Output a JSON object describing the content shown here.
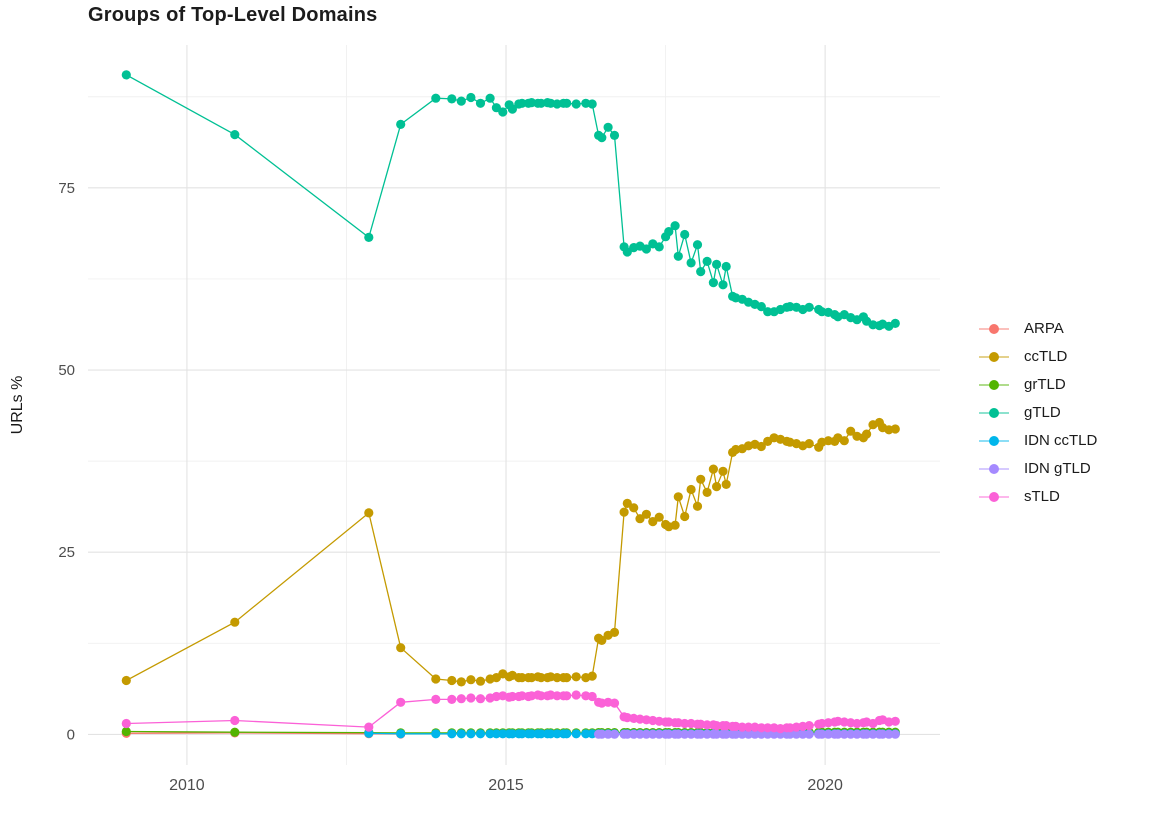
{
  "title": "Groups of Top-Level Domains",
  "axes": {
    "y_label": "URLs %",
    "y_ticks": [
      "0",
      "25",
      "50",
      "75"
    ],
    "y_tick_values": [
      0,
      25,
      50,
      75
    ],
    "x_ticks": [
      "2010",
      "2015",
      "2020"
    ],
    "x_tick_values": [
      2010,
      2015,
      2020
    ]
  },
  "chart_data": {
    "type": "line",
    "title": "Groups of Top-Level Domains",
    "xlabel": "",
    "ylabel": "URLs %",
    "xlim": [
      2008.45,
      2021.8
    ],
    "ylim": [
      -4.2,
      94.6
    ],
    "grid": true,
    "background_color": "#FFFFFF",
    "grid_major_color": "#E3E3E3",
    "grid_minor_color": "#F0F0F0",
    "tick_label_color": "#4D4D4D",
    "text_color": "#1A1A1A",
    "legend_position": "right",
    "x_major_gridlines": [
      2010,
      2015,
      2020
    ],
    "x_minor_gridlines": [
      2012.5,
      2017.5
    ],
    "y_major_gridlines": [
      0,
      25,
      50,
      75
    ],
    "y_minor_gridlines": [
      12.5,
      37.5,
      62.5,
      87.5
    ],
    "series": [
      {
        "name": "ARPA",
        "color": "#F8766D",
        "x": [
          2009.05,
          2010.75,
          2012.85,
          2013.35
        ],
        "y": [
          0.15,
          0.2,
          0.1,
          0.05
        ]
      },
      {
        "name": "ccTLD",
        "color": "#C49A00",
        "x": [
          2009.05,
          2010.75,
          2012.85,
          2013.35,
          2013.9,
          2014.15,
          2014.3,
          2014.45,
          2014.6,
          2014.75,
          2014.85,
          2014.95,
          2015.05,
          2015.1,
          2015.2,
          2015.25,
          2015.35,
          2015.4,
          2015.5,
          2015.55,
          2015.65,
          2015.7,
          2015.8,
          2015.9,
          2015.95,
          2016.1,
          2016.25,
          2016.35,
          2016.45,
          2016.5,
          2016.6,
          2016.7,
          2016.85,
          2016.9,
          2017.0,
          2017.1,
          2017.2,
          2017.3,
          2017.4,
          2017.5,
          2017.55,
          2017.65,
          2017.7,
          2017.8,
          2017.9,
          2018.0,
          2018.05,
          2018.15,
          2018.25,
          2018.3,
          2018.4,
          2018.45,
          2018.55,
          2018.6,
          2018.7,
          2018.8,
          2018.9,
          2019.0,
          2019.1,
          2019.2,
          2019.3,
          2019.4,
          2019.45,
          2019.55,
          2019.65,
          2019.75,
          2019.9,
          2019.95,
          2020.05,
          2020.15,
          2020.2,
          2020.3,
          2020.4,
          2020.5,
          2020.6,
          2020.65,
          2020.75,
          2020.85,
          2020.9,
          2021.0,
          2021.1
        ],
        "y": [
          7.4,
          15.4,
          30.4,
          11.9,
          7.6,
          7.4,
          7.2,
          7.5,
          7.3,
          7.6,
          7.8,
          8.3,
          7.9,
          8.1,
          7.8,
          7.8,
          7.8,
          7.8,
          7.9,
          7.8,
          7.8,
          7.9,
          7.8,
          7.8,
          7.8,
          7.9,
          7.8,
          8.0,
          13.2,
          12.9,
          13.6,
          14.0,
          30.5,
          31.7,
          31.1,
          29.6,
          30.2,
          29.2,
          29.8,
          28.8,
          28.5,
          28.7,
          32.6,
          29.9,
          33.6,
          31.3,
          35.0,
          33.2,
          36.4,
          34.0,
          36.1,
          34.3,
          38.7,
          39.1,
          39.2,
          39.6,
          39.8,
          39.5,
          40.2,
          40.7,
          40.5,
          40.2,
          40.1,
          39.9,
          39.6,
          39.9,
          39.4,
          40.1,
          40.3,
          40.2,
          40.7,
          40.3,
          41.6,
          40.9,
          40.7,
          41.2,
          42.5,
          42.8,
          42.1,
          41.8,
          41.9
        ]
      },
      {
        "name": "grTLD",
        "color": "#53B400",
        "x": [
          2009.05,
          2010.75,
          2012.85,
          2013.35,
          2013.9,
          2014.15,
          2014.3,
          2014.45,
          2014.6,
          2014.75,
          2014.85,
          2014.95,
          2015.05,
          2015.1,
          2015.2,
          2015.25,
          2015.35,
          2015.4,
          2015.5,
          2015.55,
          2015.65,
          2015.7,
          2015.8,
          2015.9,
          2015.95,
          2016.1,
          2016.25,
          2016.35,
          2016.45,
          2016.5,
          2016.6,
          2016.7,
          2016.85,
          2016.9,
          2017.0,
          2017.1,
          2017.2,
          2017.3,
          2017.4,
          2017.5,
          2017.55,
          2017.65,
          2017.7,
          2017.8,
          2017.9,
          2018.0,
          2018.05,
          2018.15,
          2018.25,
          2018.3,
          2018.4,
          2018.45,
          2018.55,
          2018.6,
          2018.7,
          2018.8,
          2018.9,
          2019.0,
          2019.1,
          2019.2,
          2019.3,
          2019.4,
          2019.45,
          2019.55,
          2019.65,
          2019.75,
          2019.9,
          2019.95,
          2020.05,
          2020.15,
          2020.2,
          2020.3,
          2020.4,
          2020.5,
          2020.6,
          2020.65,
          2020.75,
          2020.85,
          2020.9,
          2021.0,
          2021.1
        ],
        "y": [
          0.4,
          0.3,
          0.25,
          0.2,
          0.2,
          0.2,
          0.2,
          0.2,
          0.2,
          0.2,
          0.2,
          0.2,
          0.2,
          0.2,
          0.2,
          0.2,
          0.2,
          0.2,
          0.2,
          0.2,
          0.2,
          0.2,
          0.2,
          0.2,
          0.2,
          0.2,
          0.2,
          0.2,
          0.25,
          0.25,
          0.25,
          0.25,
          0.25,
          0.25,
          0.25,
          0.25,
          0.25,
          0.25,
          0.25,
          0.25,
          0.25,
          0.25,
          0.25,
          0.25,
          0.25,
          0.25,
          0.25,
          0.25,
          0.25,
          0.25,
          0.25,
          0.25,
          0.25,
          0.3,
          0.3,
          0.3,
          0.3,
          0.3,
          0.3,
          0.3,
          0.3,
          0.3,
          0.3,
          0.3,
          0.3,
          0.3,
          0.3,
          0.3,
          0.3,
          0.3,
          0.3,
          0.3,
          0.3,
          0.3,
          0.3,
          0.3,
          0.3,
          0.3,
          0.3,
          0.3,
          0.3
        ]
      },
      {
        "name": "gTLD",
        "color": "#00C094",
        "x": [
          2009.05,
          2010.75,
          2012.85,
          2013.35,
          2013.9,
          2014.15,
          2014.3,
          2014.45,
          2014.6,
          2014.75,
          2014.85,
          2014.95,
          2015.05,
          2015.1,
          2015.2,
          2015.25,
          2015.35,
          2015.4,
          2015.5,
          2015.55,
          2015.65,
          2015.7,
          2015.8,
          2015.9,
          2015.95,
          2016.1,
          2016.25,
          2016.35,
          2016.45,
          2016.5,
          2016.6,
          2016.7,
          2016.85,
          2016.9,
          2017.0,
          2017.1,
          2017.2,
          2017.3,
          2017.4,
          2017.5,
          2017.55,
          2017.65,
          2017.7,
          2017.8,
          2017.9,
          2018.0,
          2018.05,
          2018.15,
          2018.25,
          2018.3,
          2018.4,
          2018.45,
          2018.55,
          2018.6,
          2018.7,
          2018.8,
          2018.9,
          2019.0,
          2019.1,
          2019.2,
          2019.3,
          2019.4,
          2019.45,
          2019.55,
          2019.65,
          2019.75,
          2019.9,
          2019.95,
          2020.05,
          2020.15,
          2020.2,
          2020.3,
          2020.4,
          2020.5,
          2020.6,
          2020.65,
          2020.75,
          2020.85,
          2020.9,
          2021.0,
          2021.1
        ],
        "y": [
          90.5,
          82.3,
          68.2,
          83.7,
          87.3,
          87.2,
          86.9,
          87.4,
          86.6,
          87.3,
          86.0,
          85.4,
          86.4,
          85.8,
          86.5,
          86.6,
          86.6,
          86.7,
          86.6,
          86.6,
          86.7,
          86.6,
          86.5,
          86.6,
          86.6,
          86.5,
          86.6,
          86.5,
          82.2,
          81.9,
          83.3,
          82.2,
          66.9,
          66.2,
          66.8,
          67.0,
          66.6,
          67.3,
          66.9,
          68.3,
          69.0,
          69.8,
          65.6,
          68.6,
          64.7,
          67.2,
          63.5,
          64.9,
          62.0,
          64.5,
          61.7,
          64.2,
          60.1,
          59.9,
          59.7,
          59.3,
          59.0,
          58.7,
          58.0,
          58.0,
          58.3,
          58.6,
          58.7,
          58.6,
          58.3,
          58.6,
          58.3,
          58.0,
          57.9,
          57.6,
          57.3,
          57.6,
          57.2,
          56.9,
          57.3,
          56.7,
          56.2,
          56.1,
          56.3,
          56.0,
          56.4
        ]
      },
      {
        "name": "IDN ccTLD",
        "color": "#00B6EB",
        "x": [
          2012.85,
          2013.35,
          2013.9,
          2014.15,
          2014.3,
          2014.45,
          2014.6,
          2014.75,
          2014.85,
          2014.95,
          2015.05,
          2015.1,
          2015.2,
          2015.25,
          2015.35,
          2015.4,
          2015.5,
          2015.55,
          2015.65,
          2015.7,
          2015.8,
          2015.9,
          2015.95,
          2016.1,
          2016.25,
          2016.35,
          2016.45,
          2016.5,
          2016.6,
          2016.7,
          2016.85,
          2016.9,
          2017.0,
          2017.1,
          2017.2,
          2017.3,
          2017.4,
          2017.5,
          2017.55,
          2017.65,
          2017.7,
          2017.8,
          2017.9,
          2018.0,
          2018.05,
          2018.15,
          2018.25,
          2018.3,
          2018.4,
          2018.45,
          2018.55,
          2018.6,
          2018.7,
          2018.8,
          2018.9,
          2019.0,
          2019.1,
          2019.2,
          2019.3,
          2019.4,
          2019.45,
          2019.55,
          2019.65,
          2019.75,
          2019.9,
          2019.95,
          2020.05,
          2020.15,
          2020.2,
          2020.3,
          2020.4,
          2020.5,
          2020.6,
          2020.65,
          2020.75,
          2020.85,
          2020.9,
          2021.0,
          2021.1
        ],
        "y": [
          0.15,
          0.08,
          0.08,
          0.08,
          0.08,
          0.08,
          0.08,
          0.08,
          0.08,
          0.08,
          0.08,
          0.08,
          0.08,
          0.08,
          0.08,
          0.08,
          0.08,
          0.08,
          0.08,
          0.08,
          0.08,
          0.08,
          0.08,
          0.08,
          0.08,
          0.08,
          0.08,
          0.08,
          0.08,
          0.08,
          0.08,
          0.08,
          0.08,
          0.08,
          0.08,
          0.08,
          0.08,
          0.08,
          0.08,
          0.08,
          0.08,
          0.08,
          0.08,
          0.08,
          0.08,
          0.08,
          0.08,
          0.08,
          0.08,
          0.08,
          0.08,
          0.08,
          0.08,
          0.08,
          0.08,
          0.08,
          0.08,
          0.08,
          0.08,
          0.08,
          0.08,
          0.08,
          0.08,
          0.08,
          0.08,
          0.08,
          0.08,
          0.08,
          0.08,
          0.08,
          0.08,
          0.08,
          0.08,
          0.08,
          0.08,
          0.08,
          0.08,
          0.08,
          0.08
        ]
      },
      {
        "name": "IDN gTLD",
        "color": "#A58AFF",
        "x": [
          2016.45,
          2016.5,
          2016.6,
          2016.7,
          2016.85,
          2016.9,
          2017.0,
          2017.1,
          2017.2,
          2017.3,
          2017.4,
          2017.5,
          2017.55,
          2017.65,
          2017.7,
          2017.8,
          2017.9,
          2018.0,
          2018.05,
          2018.15,
          2018.25,
          2018.3,
          2018.4,
          2018.45,
          2018.55,
          2018.6,
          2018.7,
          2018.8,
          2018.9,
          2019.0,
          2019.1,
          2019.2,
          2019.3,
          2019.4,
          2019.45,
          2019.55,
          2019.65,
          2019.75,
          2019.9,
          2019.95,
          2020.05,
          2020.15,
          2020.2,
          2020.3,
          2020.4,
          2020.5,
          2020.6,
          2020.65,
          2020.75,
          2020.85,
          2020.9,
          2021.0,
          2021.1
        ],
        "y": [
          0.02,
          0.02,
          0.02,
          0.02,
          0.02,
          0.02,
          0.02,
          0.02,
          0.02,
          0.02,
          0.02,
          0.02,
          0.02,
          0.02,
          0.02,
          0.02,
          0.02,
          0.02,
          0.02,
          0.02,
          0.02,
          0.02,
          0.02,
          0.02,
          0.02,
          0.02,
          0.02,
          0.02,
          0.02,
          0.02,
          0.02,
          0.02,
          0.02,
          0.02,
          0.02,
          0.02,
          0.02,
          0.02,
          0.02,
          0.02,
          0.02,
          0.02,
          0.02,
          0.02,
          0.02,
          0.02,
          0.02,
          0.02,
          0.02,
          0.02,
          0.02,
          0.02,
          0.02
        ]
      },
      {
        "name": "sTLD",
        "color": "#FB61D7",
        "x": [
          2009.05,
          2010.75,
          2012.85,
          2013.35,
          2013.9,
          2014.15,
          2014.3,
          2014.45,
          2014.6,
          2014.75,
          2014.85,
          2014.95,
          2015.05,
          2015.1,
          2015.2,
          2015.25,
          2015.35,
          2015.4,
          2015.5,
          2015.55,
          2015.65,
          2015.7,
          2015.8,
          2015.9,
          2015.95,
          2016.1,
          2016.25,
          2016.35,
          2016.45,
          2016.5,
          2016.6,
          2016.7,
          2016.85,
          2016.9,
          2017.0,
          2017.1,
          2017.2,
          2017.3,
          2017.4,
          2017.5,
          2017.55,
          2017.65,
          2017.7,
          2017.8,
          2017.9,
          2018.0,
          2018.05,
          2018.15,
          2018.25,
          2018.3,
          2018.4,
          2018.45,
          2018.55,
          2018.6,
          2018.7,
          2018.8,
          2018.9,
          2019.0,
          2019.1,
          2019.2,
          2019.3,
          2019.4,
          2019.45,
          2019.55,
          2019.65,
          2019.75,
          2019.9,
          2019.95,
          2020.05,
          2020.15,
          2020.2,
          2020.3,
          2020.4,
          2020.5,
          2020.6,
          2020.65,
          2020.75,
          2020.85,
          2020.9,
          2021.0,
          2021.1
        ],
        "y": [
          1.5,
          1.9,
          1.0,
          4.4,
          4.8,
          4.8,
          4.9,
          5.0,
          4.9,
          5.0,
          5.2,
          5.3,
          5.1,
          5.2,
          5.2,
          5.3,
          5.2,
          5.3,
          5.4,
          5.3,
          5.3,
          5.4,
          5.3,
          5.3,
          5.3,
          5.4,
          5.3,
          5.2,
          4.4,
          4.3,
          4.4,
          4.3,
          2.4,
          2.3,
          2.2,
          2.1,
          2.0,
          1.9,
          1.8,
          1.7,
          1.7,
          1.6,
          1.6,
          1.5,
          1.5,
          1.4,
          1.4,
          1.3,
          1.3,
          1.2,
          1.2,
          1.2,
          1.1,
          1.1,
          1.0,
          1.0,
          1.0,
          0.9,
          0.9,
          0.9,
          0.8,
          0.9,
          0.9,
          1.0,
          1.1,
          1.2,
          1.4,
          1.5,
          1.6,
          1.7,
          1.8,
          1.7,
          1.6,
          1.5,
          1.6,
          1.7,
          1.5,
          1.9,
          2.0,
          1.7,
          1.8
        ]
      }
    ]
  }
}
